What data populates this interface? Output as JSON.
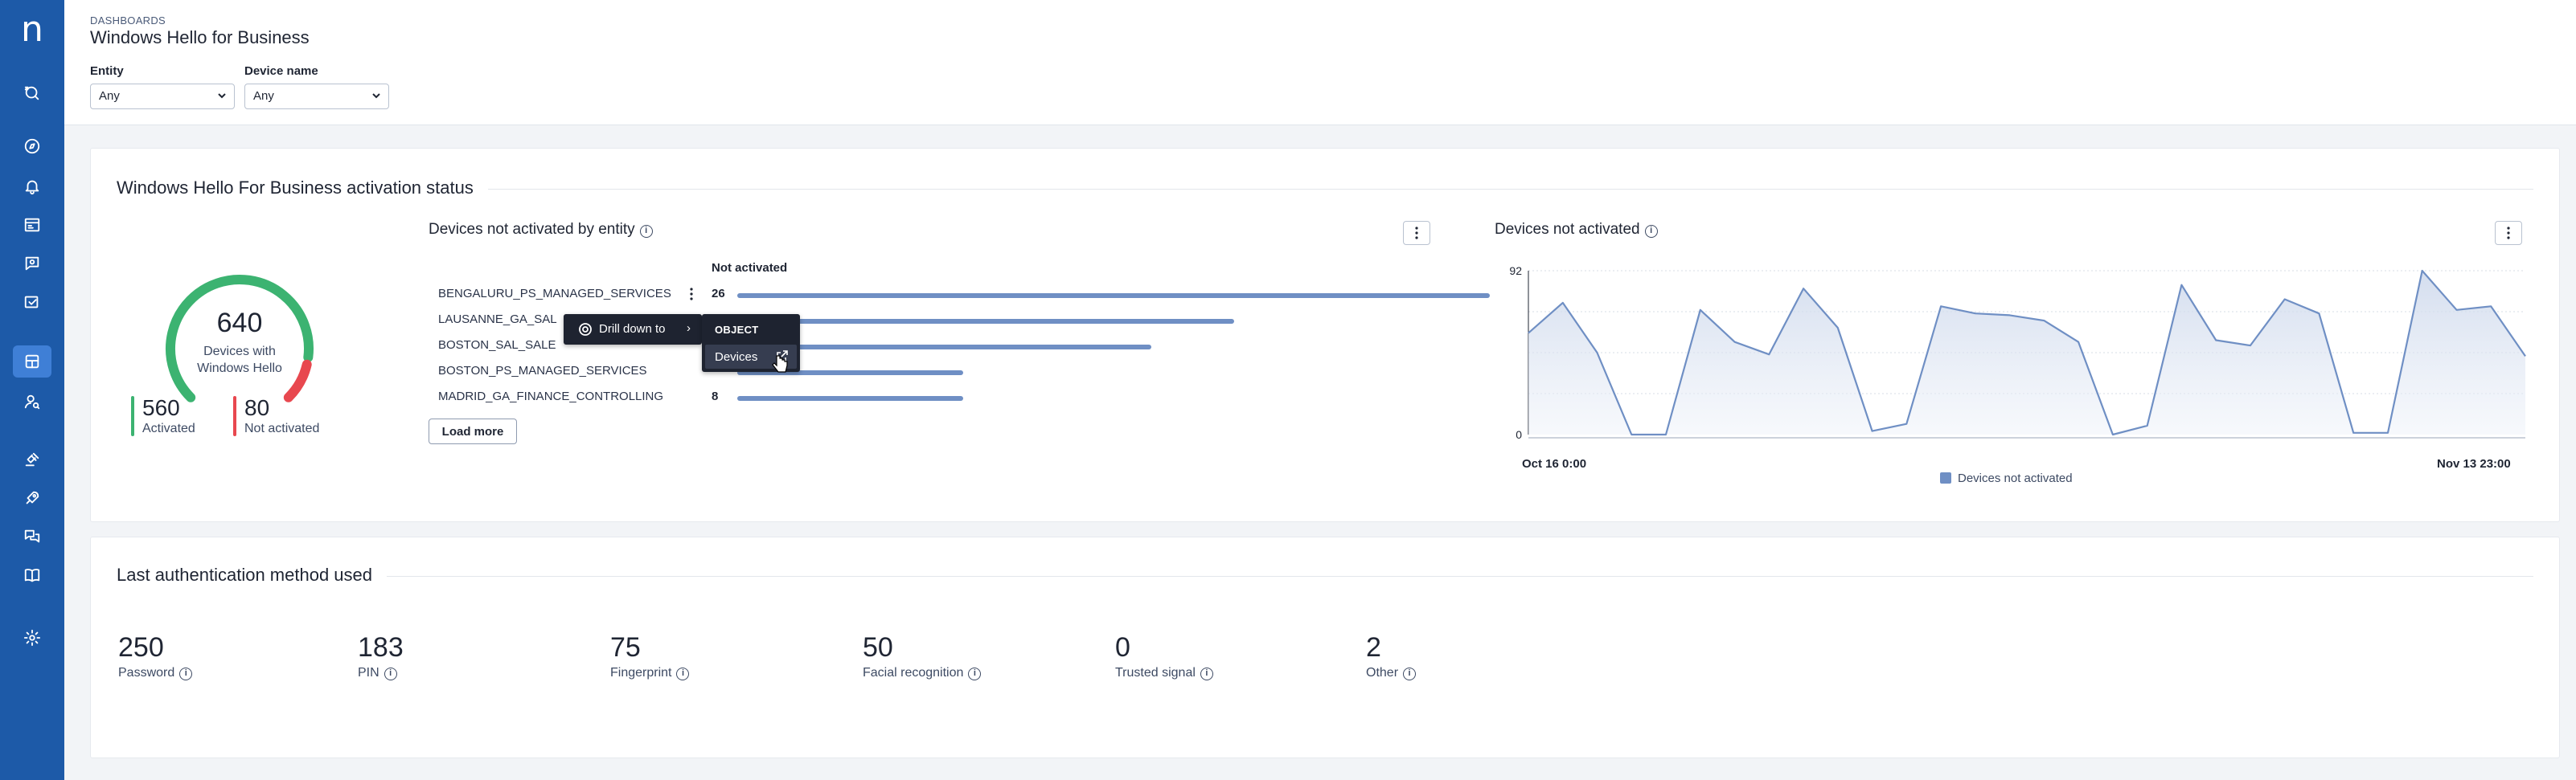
{
  "brand": {
    "logo_glyph": "n",
    "sidebar_color": "#1d5aa8",
    "accent": "#6f8fc4",
    "success": "#3cb371",
    "danger": "#e8484f"
  },
  "header": {
    "breadcrumb": "DASHBOARDS",
    "title": "Windows Hello for Business",
    "filters": [
      {
        "label": "Entity",
        "value": "Any"
      },
      {
        "label": "Device name",
        "value": "Any"
      }
    ]
  },
  "activation": {
    "title": "Windows Hello For Business activation status",
    "donut": {
      "total": "640",
      "subtitle_line1": "Devices with",
      "subtitle_line2": "Windows Hello",
      "activated_fraction": 0.875
    },
    "activated": {
      "value": "560",
      "label": "Activated"
    },
    "not_activated": {
      "value": "80",
      "label": "Not activated"
    },
    "by_entity": {
      "title": "Devices not activated by entity",
      "column_header": "Not activated",
      "load_more": "Load more",
      "rows": [
        {
          "label": "BENGALURU_PS_MANAGED_SERVICES",
          "value": "26"
        },
        {
          "label": "LAUSANNE_GA_SAL",
          "value": ""
        },
        {
          "label": "BOSTON_SAL_SALE",
          "value": ""
        },
        {
          "label": "BOSTON_PS_MANAGED_SERVICES",
          "value": ""
        },
        {
          "label": "MADRID_GA_FINANCE_CONTROLLING",
          "value": "8"
        }
      ],
      "bar_fractions": [
        1.0,
        0.66,
        0.55,
        0.3,
        0.3
      ]
    },
    "context_menu": {
      "drill_label": "Drill down to",
      "submenu_header": "OBJECT",
      "submenu_item": "Devices"
    },
    "line_chart": {
      "title": "Devices not activated",
      "legend": "Devices not activated",
      "x_start": "Oct 16 0:00",
      "x_end": "Nov 13 23:00"
    }
  },
  "chart_data": {
    "type": "area",
    "title": "Devices not activated",
    "ylim": [
      0,
      92
    ],
    "y_ticks": [
      "0",
      "92"
    ],
    "x_range": [
      "Oct 16 0:00",
      "Nov 13 23:00"
    ],
    "series": [
      {
        "name": "Devices not activated",
        "values": [
          57,
          74,
          46,
          0,
          0,
          70,
          52,
          45,
          82,
          60,
          2,
          6,
          72,
          68,
          67,
          64,
          52,
          0,
          5,
          84,
          53,
          50,
          76,
          68,
          1,
          1,
          92,
          70,
          72,
          44
        ]
      }
    ],
    "grid": true,
    "legend": "bottom-center"
  },
  "auth": {
    "title": "Last authentication method used",
    "stats": [
      {
        "value": "250",
        "label": "Password"
      },
      {
        "value": "183",
        "label": "PIN"
      },
      {
        "value": "75",
        "label": "Fingerprint"
      },
      {
        "value": "50",
        "label": "Facial recognition"
      },
      {
        "value": "0",
        "label": "Trusted signal"
      },
      {
        "value": "2",
        "label": "Other"
      }
    ]
  },
  "nav_icons": [
    "search-icon",
    "compass-icon",
    "bell-icon",
    "dashboard-list-icon",
    "chat-search-icon",
    "image-check-icon",
    "dashboards-icon",
    "user-search-icon",
    "gavel-icon",
    "rocket-icon",
    "chat-bubbles-icon",
    "book-icon",
    "gear-icon"
  ]
}
